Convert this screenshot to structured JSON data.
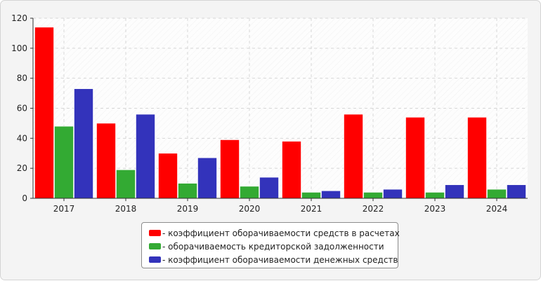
{
  "chart_data": {
    "type": "bar",
    "categories": [
      "2017",
      "2018",
      "2019",
      "2020",
      "2021",
      "2022",
      "2023",
      "2024"
    ],
    "series": [
      {
        "name": "- коэффициент оборачиваемости средств в расчетах",
        "color": "#ff0000",
        "values": [
          114,
          50,
          30,
          39,
          38,
          56,
          54,
          54
        ]
      },
      {
        "name": "- оборачиваемость кредиторской задолженности",
        "color": "#33aa33",
        "values": [
          48,
          19,
          10,
          8,
          4,
          4,
          4,
          6
        ]
      },
      {
        "name": "- коэффициент оборачиваемости денежных средств",
        "color": "#3333bb",
        "values": [
          73,
          56,
          27,
          14,
          5,
          6,
          9,
          9
        ]
      }
    ],
    "yticks": [
      0,
      20,
      40,
      60,
      80,
      100,
      120
    ],
    "ylim": [
      0,
      120
    ],
    "grid": true,
    "legend": "bottom-center",
    "title": "",
    "xlabel": "",
    "ylabel": ""
  }
}
